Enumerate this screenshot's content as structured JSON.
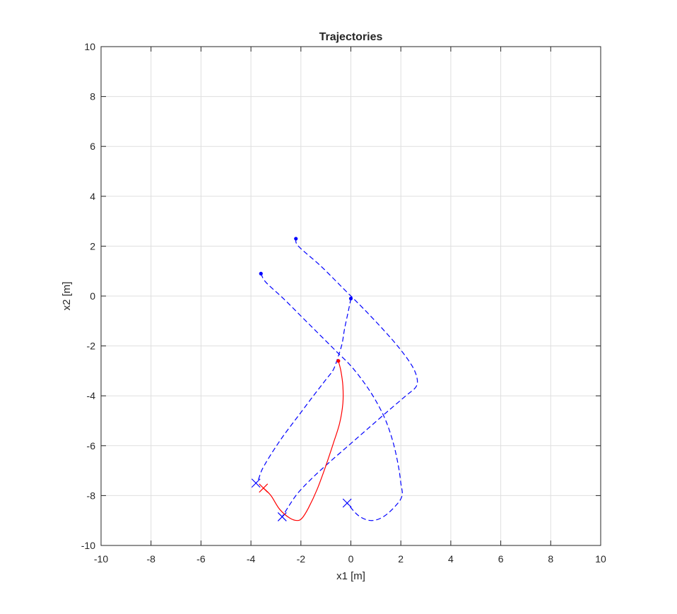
{
  "chart_data": {
    "type": "line",
    "title": "Trajectories",
    "xlabel": "x1 [m]",
    "ylabel": "x2 [m]",
    "xlim": [
      -10,
      10
    ],
    "ylim": [
      -10,
      10
    ],
    "xticks": [
      -10,
      -8,
      -6,
      -4,
      -2,
      0,
      2,
      4,
      6,
      8,
      10
    ],
    "yticks": [
      -10,
      -8,
      -6,
      -4,
      -2,
      0,
      2,
      4,
      6,
      8,
      10
    ],
    "grid": true,
    "colors": {
      "blue": "#0000ff",
      "red": "#ff0000",
      "grid": "#dfdfdf",
      "axis": "#262626"
    },
    "series": [
      {
        "color": "#0000ff",
        "style": "dashed",
        "start_marker": "dot",
        "end_marker": "x",
        "points": [
          [
            -2.2,
            2.3
          ],
          [
            -2.1,
            2.0
          ],
          [
            -1.2,
            1.2
          ],
          [
            -0.3,
            0.3
          ],
          [
            0.5,
            -0.5
          ],
          [
            1.3,
            -1.35
          ],
          [
            1.95,
            -2.1
          ],
          [
            2.45,
            -2.8
          ],
          [
            2.65,
            -3.3
          ],
          [
            2.6,
            -3.65
          ],
          [
            2.2,
            -4.0
          ],
          [
            1.5,
            -4.6
          ],
          [
            0.7,
            -5.3
          ],
          [
            -0.1,
            -6.0
          ],
          [
            -0.9,
            -6.7
          ],
          [
            -1.6,
            -7.35
          ],
          [
            -2.2,
            -8.0
          ],
          [
            -2.75,
            -8.85
          ]
        ]
      },
      {
        "color": "#0000ff",
        "style": "dashed",
        "start_marker": "dot",
        "end_marker": "x",
        "points": [
          [
            -3.6,
            0.9
          ],
          [
            -3.4,
            0.55
          ],
          [
            -2.7,
            -0.1
          ],
          [
            -2.0,
            -0.8
          ],
          [
            -1.3,
            -1.5
          ],
          [
            -0.6,
            -2.2
          ],
          [
            0.0,
            -2.8
          ],
          [
            0.55,
            -3.5
          ],
          [
            1.0,
            -4.2
          ],
          [
            1.4,
            -5.0
          ],
          [
            1.7,
            -5.9
          ],
          [
            1.9,
            -6.8
          ],
          [
            2.0,
            -7.5
          ],
          [
            2.05,
            -8.0
          ],
          [
            1.8,
            -8.4
          ],
          [
            1.3,
            -8.85
          ],
          [
            0.8,
            -9.0
          ],
          [
            0.3,
            -8.8
          ],
          [
            -0.15,
            -8.3
          ]
        ]
      },
      {
        "color": "#0000ff",
        "style": "dashed",
        "start_marker": "dot",
        "end_marker": "x",
        "points": [
          [
            0.0,
            -0.1
          ],
          [
            -0.1,
            -0.6
          ],
          [
            -0.25,
            -1.3
          ],
          [
            -0.35,
            -1.9
          ],
          [
            -0.5,
            -2.4
          ],
          [
            -0.7,
            -2.95
          ],
          [
            -1.0,
            -3.35
          ],
          [
            -1.5,
            -4.0
          ],
          [
            -2.1,
            -4.8
          ],
          [
            -2.7,
            -5.6
          ],
          [
            -3.2,
            -6.35
          ],
          [
            -3.55,
            -6.95
          ],
          [
            -3.7,
            -7.35
          ],
          [
            -3.8,
            -7.5
          ]
        ]
      },
      {
        "color": "#ff0000",
        "style": "solid",
        "start_marker": "dot",
        "end_marker": "x",
        "points": [
          [
            -0.5,
            -2.6
          ],
          [
            -0.4,
            -3.0
          ],
          [
            -0.32,
            -3.6
          ],
          [
            -0.32,
            -4.3
          ],
          [
            -0.45,
            -5.1
          ],
          [
            -0.7,
            -5.9
          ],
          [
            -1.0,
            -6.8
          ],
          [
            -1.35,
            -7.75
          ],
          [
            -1.7,
            -8.5
          ],
          [
            -1.95,
            -8.9
          ],
          [
            -2.15,
            -9.0
          ],
          [
            -2.45,
            -8.9
          ],
          [
            -2.85,
            -8.55
          ],
          [
            -3.2,
            -8.0
          ],
          [
            -3.5,
            -7.7
          ]
        ]
      }
    ]
  }
}
